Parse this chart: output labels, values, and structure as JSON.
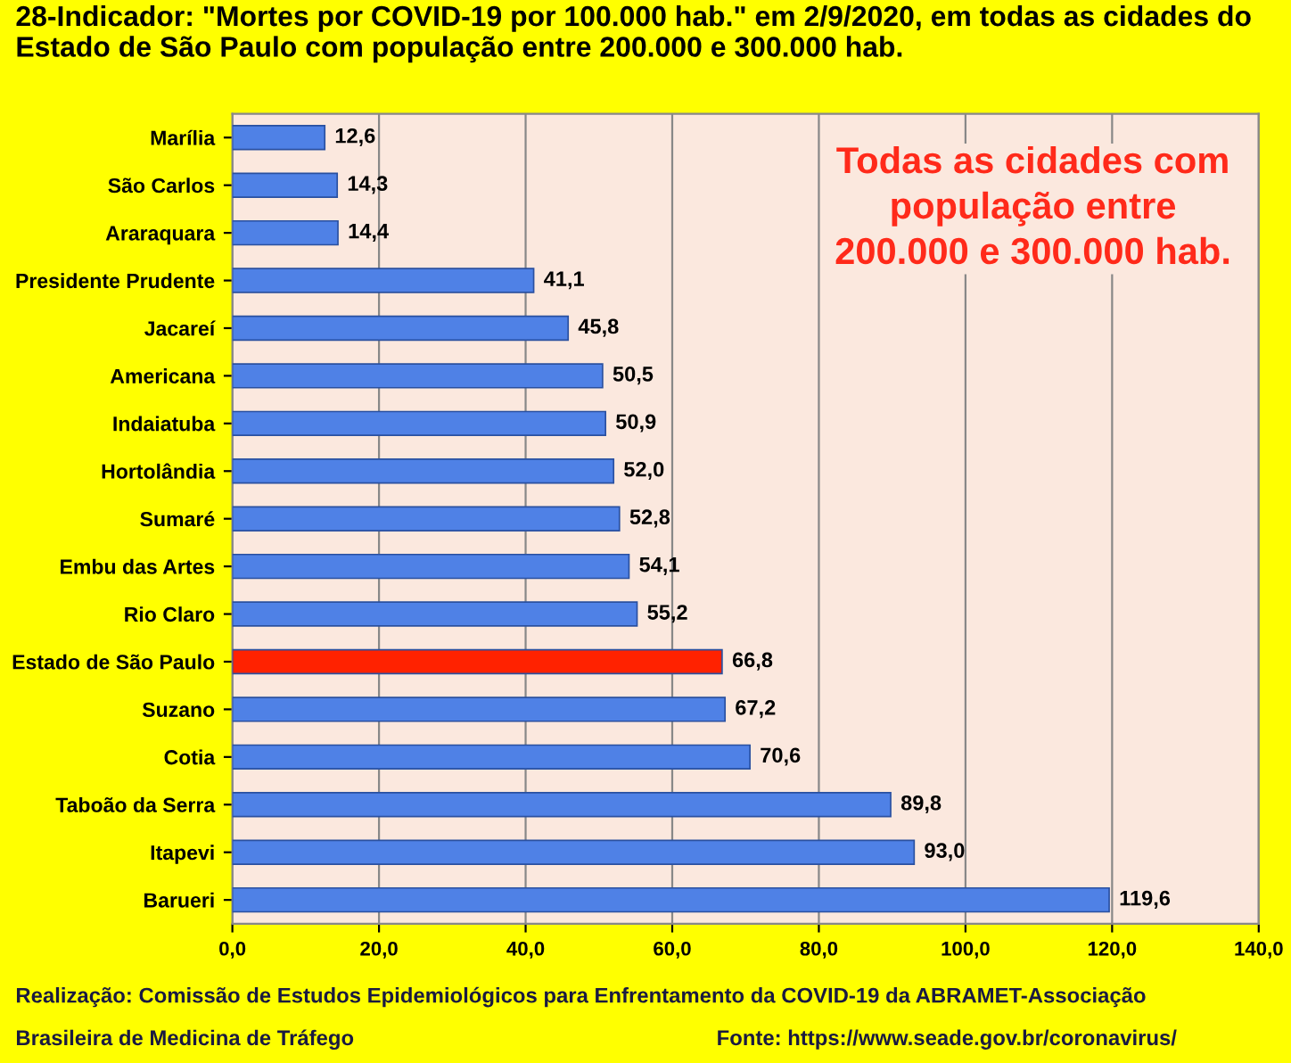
{
  "chart_data": {
    "type": "bar",
    "orientation": "horizontal",
    "title": "28-Indicador: \"Mortes por COVID-19 por 100.000 hab.\" em 2/9/2020, em todas as cidades do Estado de São Paulo com população entre 200.000 e 300.000 hab.",
    "categories": [
      "Marília",
      "São Carlos",
      "Araraquara",
      "Presidente Prudente",
      "Jacareí",
      "Americana",
      "Indaiatuba",
      "Hortolândia",
      "Sumaré",
      "Embu das Artes",
      "Rio Claro",
      "Estado de São Paulo",
      "Suzano",
      "Cotia",
      "Taboão da Serra",
      "Itapevi",
      "Barueri"
    ],
    "values": [
      12.6,
      14.3,
      14.4,
      41.1,
      45.8,
      50.5,
      50.9,
      52.0,
      52.8,
      54.1,
      55.2,
      66.8,
      67.2,
      70.6,
      89.8,
      93.0,
      119.6
    ],
    "value_labels": [
      "12,6",
      "14,3",
      "14,4",
      "41,1",
      "45,8",
      "50,5",
      "50,9",
      "52,0",
      "52,8",
      "54,1",
      "55,2",
      "66,8",
      "67,2",
      "70,6",
      "89,8",
      "93,0",
      "119,6"
    ],
    "colors": [
      "#4f81e6",
      "#4f81e6",
      "#4f81e6",
      "#4f81e6",
      "#4f81e6",
      "#4f81e6",
      "#4f81e6",
      "#4f81e6",
      "#4f81e6",
      "#4f81e6",
      "#4f81e6",
      "#ff2200",
      "#4f81e6",
      "#4f81e6",
      "#4f81e6",
      "#4f81e6",
      "#4f81e6"
    ],
    "xlim": [
      0,
      140
    ],
    "xticks": [
      {
        "value": 0,
        "label": "0,0"
      },
      {
        "value": 20,
        "label": "20,0"
      },
      {
        "value": 40,
        "label": "40,0"
      },
      {
        "value": 60,
        "label": "60,0"
      },
      {
        "value": 80,
        "label": "80,0"
      },
      {
        "value": 100,
        "label": "100,0"
      },
      {
        "value": 120,
        "label": "120,0"
      },
      {
        "value": 140,
        "label": "140,0"
      }
    ],
    "grid": "x",
    "legend": false,
    "annotations": [
      "Todas as cidades com\npopulação entre\n200.000 e 300.000 hab.",
      "Realização: Comissão de Estudos Epidemiológicos para Enfrentamento da COVID-19 da ABRAMET-Associação",
      "Brasileira de Medicina de Tráfego",
      "Fonte: https://www.seade.gov.br/coronavirus/"
    ]
  }
}
